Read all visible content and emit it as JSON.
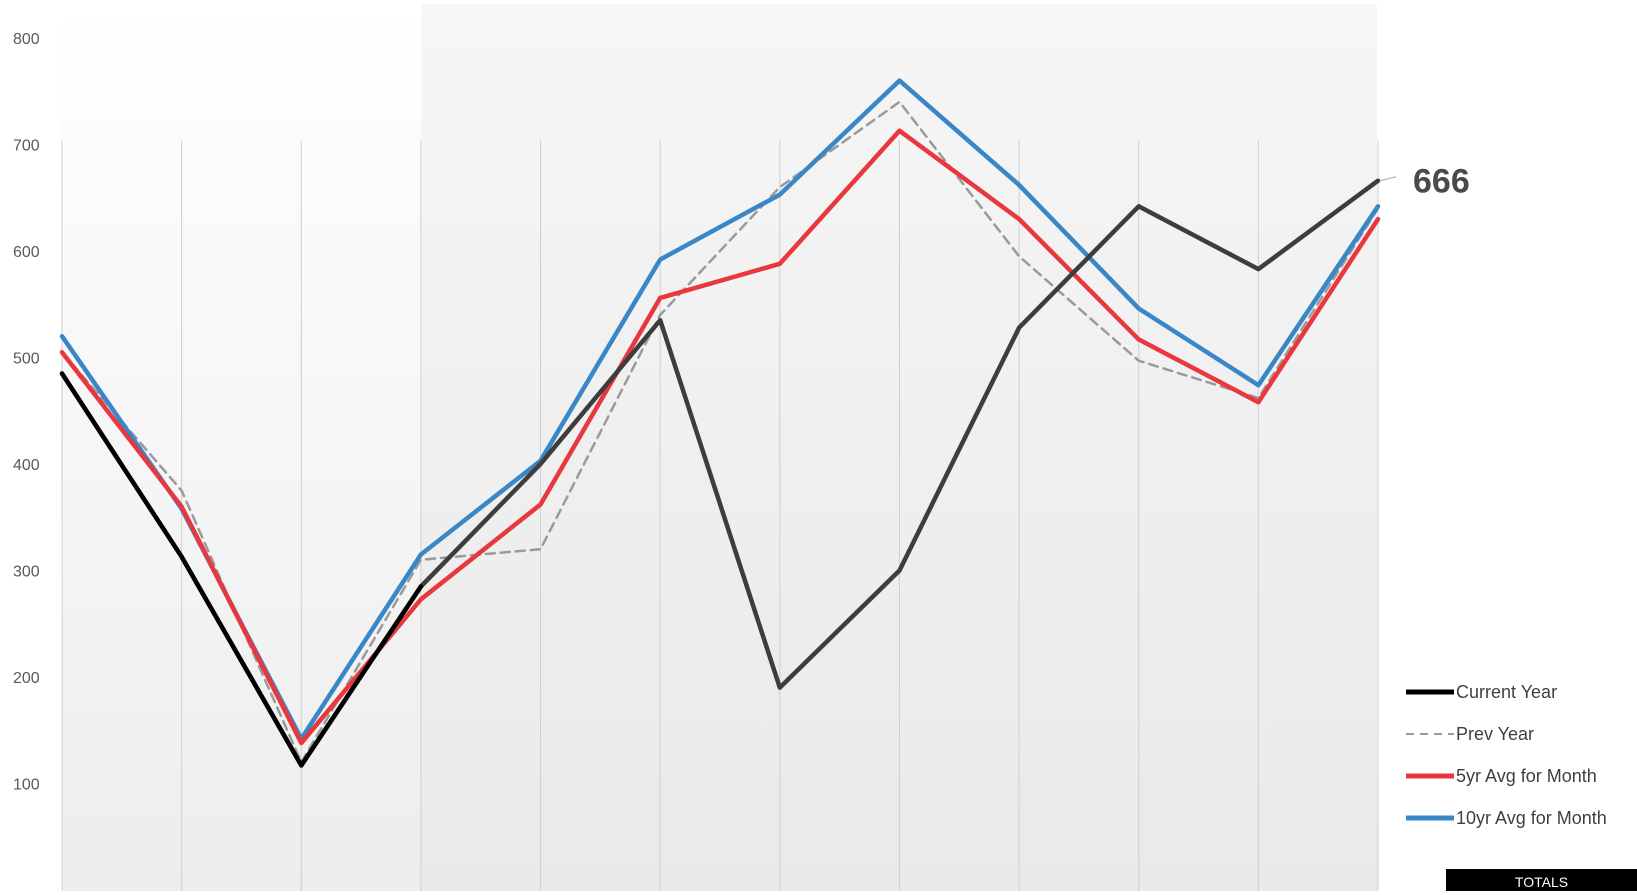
{
  "chart_data": {
    "type": "line",
    "x": [
      "1",
      "2",
      "3",
      "4",
      "5",
      "6",
      "7",
      "8",
      "9",
      "10",
      "11",
      "12"
    ],
    "ylim": [
      0,
      800
    ],
    "yticks": [
      {
        "value": 0,
        "label": "-"
      },
      {
        "value": 100,
        "label": "100"
      },
      {
        "value": 200,
        "label": "200"
      },
      {
        "value": 300,
        "label": "300"
      },
      {
        "value": 400,
        "label": "400"
      },
      {
        "value": 500,
        "label": "500"
      },
      {
        "value": 600,
        "label": "600"
      },
      {
        "value": 700,
        "label": "700"
      },
      {
        "value": 800,
        "label": "800"
      }
    ],
    "grid": {
      "vertical": true,
      "horizontal": false
    },
    "legend_position": "right",
    "series": [
      {
        "name": "Current Year",
        "color": "#000000",
        "style": "solid",
        "values": [
          485,
          313,
          117,
          285,
          400,
          535,
          190,
          300,
          528,
          642,
          583,
          666
        ]
      },
      {
        "name": "Prev Year",
        "color": "#9a9a9a",
        "style": "dashed",
        "values": [
          505,
          375,
          120,
          310,
          320,
          540,
          660,
          740,
          595,
          497,
          462,
          640
        ]
      },
      {
        "name": "5yr Avg for Month",
        "color": "#e8383d",
        "style": "solid",
        "values": [
          505,
          360,
          138,
          273,
          362,
          556,
          588,
          713,
          630,
          517,
          458,
          630
        ]
      },
      {
        "name": "10yr Avg for Month",
        "color": "#3a87c8",
        "style": "solid",
        "values": [
          520,
          358,
          142,
          315,
          403,
          592,
          653,
          760,
          662,
          546,
          474,
          642
        ]
      }
    ],
    "annotations": [
      {
        "text": "666",
        "series": "Current Year",
        "x": "12"
      }
    ]
  },
  "footer": {
    "totals_label": "TOTALS"
  }
}
